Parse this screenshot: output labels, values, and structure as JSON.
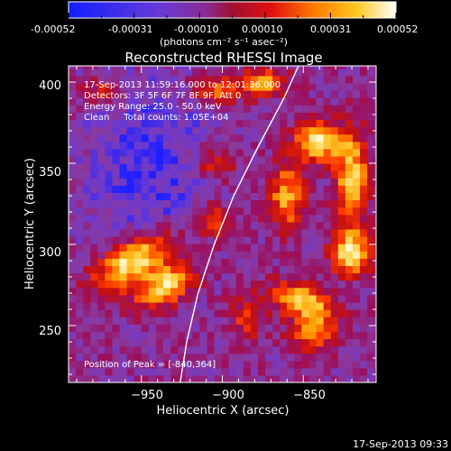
{
  "colorbar": {
    "ticks": [
      "-0.00052",
      "-0.00031",
      "-0.00010",
      "0.00010",
      "0.00031",
      "0.00052"
    ],
    "units_label": "(photons cm⁻² s⁻¹ asec⁻²)"
  },
  "chart_data": {
    "type": "heatmap",
    "title": "Reconstructed RHESSI Image",
    "xlabel": "Heliocentric X (arcsec)",
    "ylabel": "Heliocentric Y (arcsec)",
    "xlim": [
      -995,
      -805
    ],
    "ylim": [
      215,
      410
    ],
    "x_ticks": [
      -950,
      -900,
      -850
    ],
    "x_tick_labels": [
      "−950",
      "−900",
      "−850"
    ],
    "y_ticks": [
      250,
      300,
      350,
      400
    ],
    "y_tick_labels": [
      "250",
      "300",
      "350",
      "400"
    ],
    "color_range": [
      -0.00052,
      0.00052
    ],
    "colormap": [
      "#1f1fff",
      "#6b3ad0",
      "#8a3aa0",
      "#9a1060",
      "#c41010",
      "#ff3a00",
      "#ff9a00",
      "#ffd040",
      "#fff8d0"
    ],
    "annotations": [
      "17-Sep-2013 11:59:16.000 to 12:01:36.000",
      "Detectors: 3F 5F 6F 7F 8F 9F, Att 0",
      "Energy Range: 25.0 - 50.0 keV",
      "Clean     Total counts: 1.05E+04"
    ],
    "peak_label": "Position of Peak = [-840,364]",
    "peak": [
      -840,
      364
    ],
    "sources": [
      {
        "x": -955,
        "y": 290,
        "sx": 18,
        "sy": 9,
        "amp": 1.0,
        "angle": 30
      },
      {
        "x": -935,
        "y": 275,
        "sx": 14,
        "sy": 8,
        "amp": 0.9,
        "angle": 30
      },
      {
        "x": -840,
        "y": 364,
        "sx": 10,
        "sy": 8,
        "amp": 1.0,
        "angle": 0
      },
      {
        "x": -860,
        "y": 330,
        "sx": 8,
        "sy": 14,
        "amp": 0.7,
        "angle": 0
      },
      {
        "x": -820,
        "y": 340,
        "sx": 7,
        "sy": 20,
        "amp": 0.85,
        "angle": 0
      },
      {
        "x": -820,
        "y": 295,
        "sx": 9,
        "sy": 9,
        "amp": 0.9,
        "angle": 0
      },
      {
        "x": -850,
        "y": 265,
        "sx": 14,
        "sy": 7,
        "amp": 0.85,
        "angle": -20
      },
      {
        "x": -845,
        "y": 245,
        "sx": 10,
        "sy": 8,
        "amp": 0.6,
        "angle": 0
      },
      {
        "x": -905,
        "y": 395,
        "sx": 12,
        "sy": 6,
        "amp": 0.55,
        "angle": 0
      },
      {
        "x": -875,
        "y": 400,
        "sx": 10,
        "sy": 6,
        "amp": 0.7,
        "angle": 0
      },
      {
        "x": -905,
        "y": 350,
        "sx": 9,
        "sy": 7,
        "amp": 0.45,
        "angle": 0
      },
      {
        "x": -975,
        "y": 395,
        "sx": 10,
        "sy": 6,
        "amp": 0.35,
        "angle": 0
      },
      {
        "x": -905,
        "y": 315,
        "sx": 8,
        "sy": 8,
        "amp": 0.45,
        "angle": 0
      },
      {
        "x": -885,
        "y": 255,
        "sx": 8,
        "sy": 10,
        "amp": 0.4,
        "angle": 0
      }
    ],
    "limb": [
      [
        -926,
        215
      ],
      [
        -922,
        240
      ],
      [
        -915,
        270
      ],
      [
        -905,
        300
      ],
      [
        -893,
        330
      ],
      [
        -878,
        360
      ],
      [
        -862,
        390
      ],
      [
        -853,
        410
      ]
    ]
  },
  "timestamp": "17-Sep-2013 09:33"
}
